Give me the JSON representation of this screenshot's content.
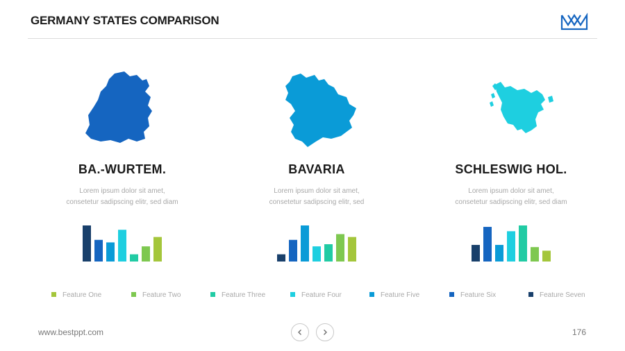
{
  "header": {
    "title": "GERMANY STATES COMPARISON",
    "logo_icon": "crown-icon",
    "logo_color": "#1565c0"
  },
  "states": [
    {
      "name": "BA.-WURTEM.",
      "description": "Lorem  ipsum  dolor  sit amet,\nconsetetur  sadipscing elitr,  sed diam",
      "map_icon": "baden-wurttemberg-map-icon",
      "map_color": "#1565c0",
      "chart_data": {
        "type": "bar",
        "values": [
          100,
          60,
          53,
          88,
          20,
          42,
          68
        ],
        "colors": [
          "#19406b",
          "#1565c0",
          "#0a9bd7",
          "#1ecfe0",
          "#21cba4",
          "#7ec850",
          "#a4c63b"
        ]
      }
    },
    {
      "name": "BAVARIA",
      "description": "Lorem  ipsum  dolor  sit amet,\nconsetetur  sadipscing elitr,  sed",
      "map_icon": "bavaria-map-icon",
      "map_color": "#0a9bd7",
      "chart_data": {
        "type": "bar",
        "values": [
          20,
          60,
          100,
          42,
          48,
          76,
          68
        ],
        "colors": [
          "#19406b",
          "#1565c0",
          "#0a9bd7",
          "#1ecfe0",
          "#21cba4",
          "#7ec850",
          "#a4c63b"
        ]
      }
    },
    {
      "name": "SCHLESWIG HOL.",
      "description": "Lorem  ipsum  dolor  sit amet,\nconsetetur  sadipscing elitr,  sed diam",
      "map_icon": "schleswig-holstein-map-icon",
      "map_color": "#1ecfe0",
      "chart_data": {
        "type": "bar",
        "values": [
          46,
          96,
          46,
          84,
          100,
          40,
          30
        ],
        "colors": [
          "#19406b",
          "#1565c0",
          "#0a9bd7",
          "#1ecfe0",
          "#21cba4",
          "#7ec850",
          "#a4c63b"
        ]
      }
    }
  ],
  "legend": [
    {
      "label": "Feature  One",
      "color": "#a4c63b"
    },
    {
      "label": "Feature  Two",
      "color": "#7ec850"
    },
    {
      "label": "Feature  Three",
      "color": "#21cba4"
    },
    {
      "label": "Feature  Four",
      "color": "#1ecfe0"
    },
    {
      "label": "Feature  Five",
      "color": "#0a9bd7"
    },
    {
      "label": "Feature  Six",
      "color": "#1565c0"
    },
    {
      "label": "Feature  Seven",
      "color": "#19406b"
    }
  ],
  "footer": {
    "url": "www.bestppt.com",
    "page_number": "176",
    "prev_icon": "chevron-left-icon",
    "next_icon": "chevron-right-icon"
  }
}
